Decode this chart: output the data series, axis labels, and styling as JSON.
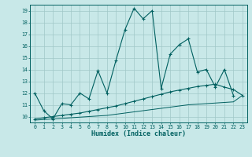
{
  "xlabel": "Humidex (Indice chaleur)",
  "bg_color": "#c8e8e8",
  "grid_color": "#a0c8c8",
  "line_color": "#006060",
  "x": [
    0,
    1,
    2,
    3,
    4,
    5,
    6,
    7,
    8,
    9,
    10,
    11,
    12,
    13,
    14,
    15,
    16,
    17,
    18,
    19,
    20,
    21,
    22,
    23
  ],
  "series1": [
    12.0,
    10.5,
    9.8,
    11.1,
    11.0,
    12.0,
    11.5,
    13.9,
    12.0,
    14.8,
    17.4,
    19.2,
    18.3,
    19.0,
    12.4,
    15.3,
    16.1,
    16.6,
    13.8,
    14.0,
    12.5,
    14.0,
    11.8,
    null
  ],
  "series2": [
    9.8,
    9.9,
    10.0,
    10.1,
    10.2,
    10.3,
    10.45,
    10.6,
    10.75,
    10.9,
    11.1,
    11.3,
    11.5,
    11.7,
    11.9,
    12.1,
    12.25,
    12.4,
    12.55,
    12.65,
    12.75,
    12.5,
    12.3,
    11.8
  ],
  "series3": [
    9.7,
    9.75,
    9.8,
    9.85,
    9.9,
    9.95,
    10.0,
    10.05,
    10.1,
    10.2,
    10.3,
    10.4,
    10.5,
    10.6,
    10.7,
    10.8,
    10.9,
    11.0,
    11.05,
    11.1,
    11.15,
    11.2,
    11.25,
    11.8
  ],
  "ylim": [
    9.5,
    19.5
  ],
  "xlim": [
    -0.5,
    23.5
  ],
  "yticks": [
    10,
    11,
    12,
    13,
    14,
    15,
    16,
    17,
    18,
    19
  ],
  "xticks": [
    0,
    1,
    2,
    3,
    4,
    5,
    6,
    7,
    8,
    9,
    10,
    11,
    12,
    13,
    14,
    15,
    16,
    17,
    18,
    19,
    20,
    21,
    22,
    23
  ]
}
